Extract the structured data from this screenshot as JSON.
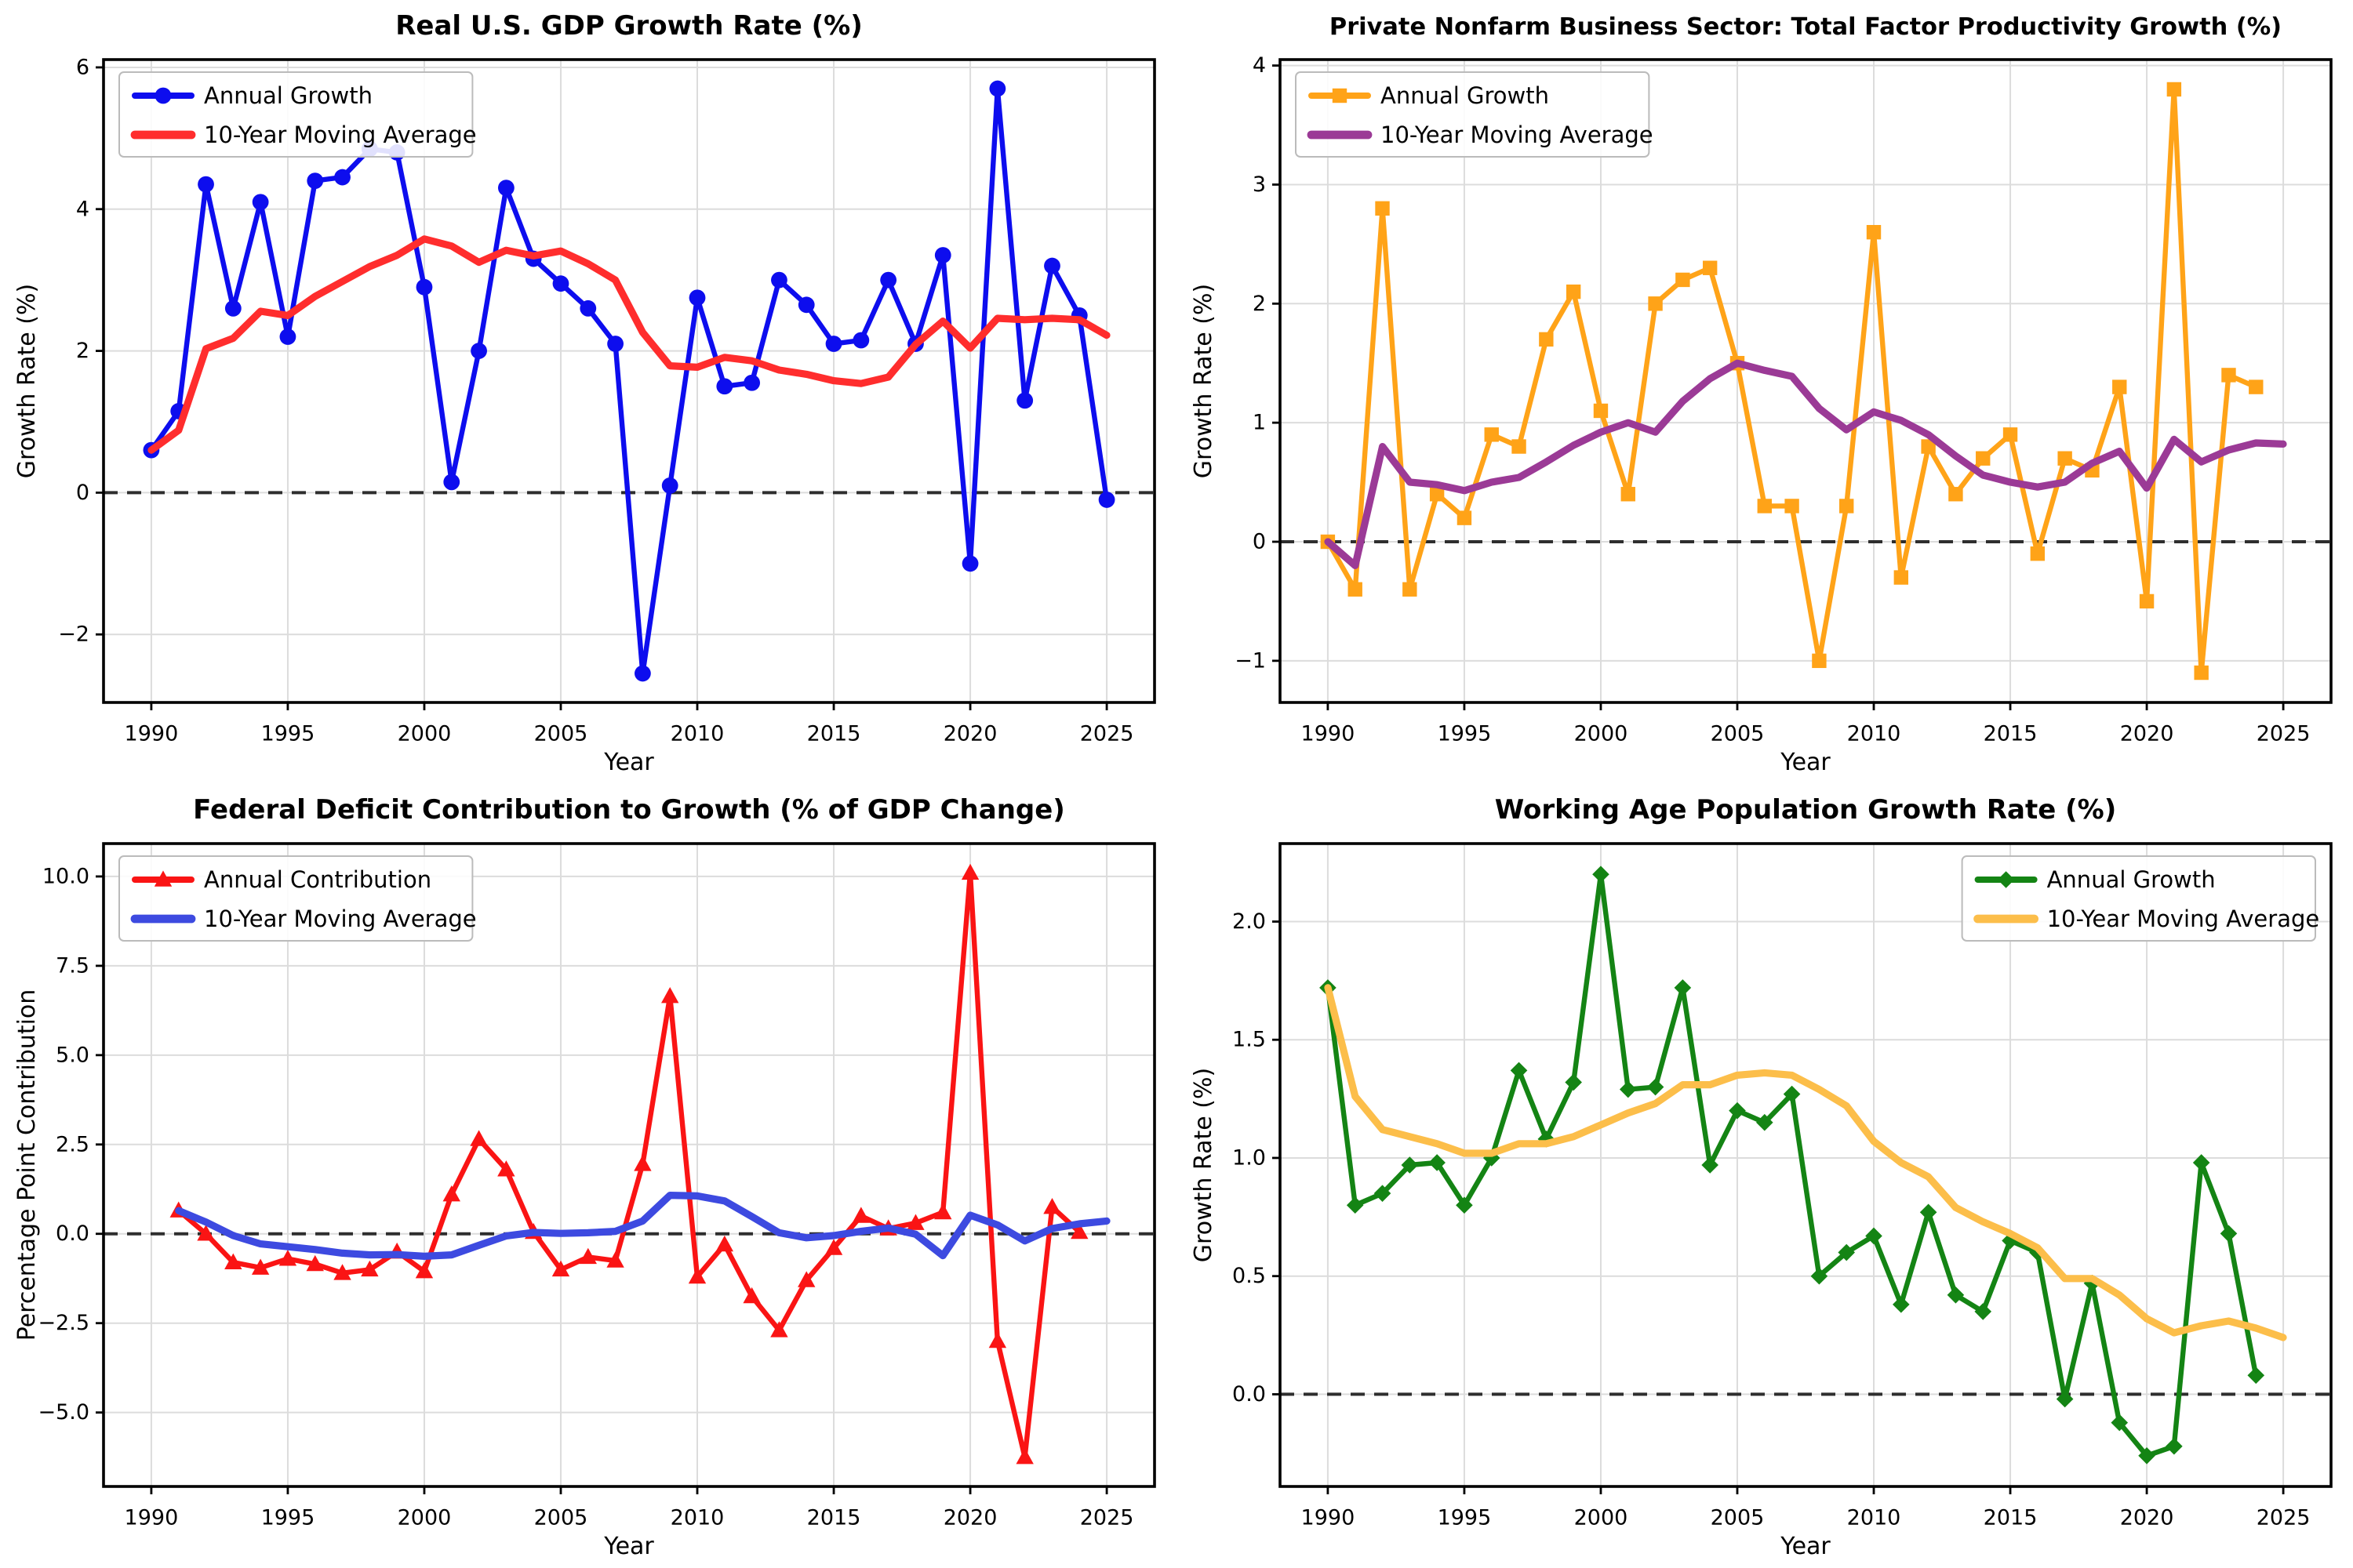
{
  "figure": {
    "background": "#ffffff",
    "grid_color": "#dcdcdc",
    "spine_color": "#000000",
    "zero_line_color": "#2e2e2e"
  },
  "chart_data": [
    {
      "type": "line",
      "title": "Real U.S. GDP Growth Rate (%)",
      "xlabel": "Year",
      "ylabel": "Growth Rate (%)",
      "legend_position": "upper-left",
      "grid": true,
      "zero_line": true,
      "x": [
        1990,
        1991,
        1992,
        1993,
        1994,
        1995,
        1996,
        1997,
        1998,
        1999,
        2000,
        2001,
        2002,
        2003,
        2004,
        2005,
        2006,
        2007,
        2008,
        2009,
        2010,
        2011,
        2012,
        2013,
        2014,
        2015,
        2016,
        2017,
        2018,
        2019,
        2020,
        2021,
        2022,
        2023,
        2024,
        2025
      ],
      "xlim": [
        1988.25,
        2026.75
      ],
      "ylim": [
        -2.96,
        6.11
      ],
      "xticks": [
        1990,
        1995,
        2000,
        2005,
        2010,
        2015,
        2020,
        2025
      ],
      "xtick_labels": [
        "1990",
        "1995",
        "2000",
        "2005",
        "2010",
        "2015",
        "2020",
        "2025"
      ],
      "yticks": [
        -2,
        0,
        2,
        4,
        6
      ],
      "ytick_labels": [
        "−2",
        "0",
        "2",
        "4",
        "6"
      ],
      "series": [
        {
          "name": "Annual Growth",
          "color": "#0d0dee",
          "marker": "circle",
          "width": 3.2,
          "values": [
            0.6,
            1.15,
            4.35,
            2.6,
            4.1,
            2.2,
            4.4,
            4.45,
            4.85,
            4.8,
            2.9,
            0.15,
            2.0,
            4.3,
            3.3,
            2.95,
            2.6,
            2.1,
            -2.55,
            0.1,
            2.75,
            1.5,
            1.55,
            3.0,
            2.65,
            2.1,
            2.15,
            3.0,
            2.1,
            3.35,
            -1.0,
            5.7,
            1.3,
            3.2,
            2.5,
            -0.1
          ]
        },
        {
          "name": "10-Year Moving Average",
          "color": "#ff2d2d",
          "marker": null,
          "width": 4.6,
          "values": [
            0.6,
            0.88,
            2.03,
            2.18,
            2.56,
            2.5,
            2.77,
            2.98,
            3.19,
            3.35,
            3.58,
            3.48,
            3.25,
            3.42,
            3.34,
            3.41,
            3.23,
            3.0,
            2.26,
            1.79,
            1.77,
            1.91,
            1.86,
            1.73,
            1.67,
            1.58,
            1.54,
            1.63,
            2.09,
            2.42,
            2.04,
            2.46,
            2.44,
            2.46,
            2.44,
            2.22
          ]
        }
      ]
    },
    {
      "type": "line",
      "title": "Private Nonfarm Business Sector: Total Factor Productivity Growth (%)",
      "xlabel": "Year",
      "ylabel": "Growth Rate (%)",
      "legend_position": "upper-left",
      "grid": true,
      "zero_line": true,
      "x": [
        1990,
        1991,
        1992,
        1993,
        1994,
        1995,
        1996,
        1997,
        1998,
        1999,
        2000,
        2001,
        2002,
        2003,
        2004,
        2005,
        2006,
        2007,
        2008,
        2009,
        2010,
        2011,
        2012,
        2013,
        2014,
        2015,
        2016,
        2017,
        2018,
        2019,
        2020,
        2021,
        2022,
        2023,
        2024,
        2025
      ],
      "xlim": [
        1988.25,
        2026.75
      ],
      "ylim": [
        -1.35,
        4.05
      ],
      "xticks": [
        1990,
        1995,
        2000,
        2005,
        2010,
        2015,
        2020,
        2025
      ],
      "xtick_labels": [
        "1990",
        "1995",
        "2000",
        "2005",
        "2010",
        "2015",
        "2020",
        "2025"
      ],
      "yticks": [
        -1,
        0,
        1,
        2,
        3,
        4
      ],
      "ytick_labels": [
        "−1",
        "0",
        "1",
        "2",
        "3",
        "4"
      ],
      "series": [
        {
          "name": "Annual Growth",
          "color": "#ffa318",
          "marker": "square",
          "width": 3.2,
          "values": [
            0.0,
            -0.4,
            2.8,
            -0.4,
            0.4,
            0.2,
            0.9,
            0.8,
            1.7,
            2.1,
            1.1,
            0.4,
            2.0,
            2.2,
            2.3,
            1.5,
            0.3,
            0.3,
            -1.0,
            0.3,
            2.6,
            -0.3,
            0.8,
            0.4,
            0.7,
            0.9,
            -0.1,
            0.7,
            0.6,
            1.3,
            -0.5,
            3.8,
            -1.1,
            1.4,
            1.3,
            null
          ]
        },
        {
          "name": "10-Year Moving Average",
          "color": "#9b3a96",
          "marker": null,
          "width": 4.6,
          "values": [
            0.0,
            -0.2,
            0.8,
            0.5,
            0.48,
            0.43,
            0.5,
            0.54,
            0.67,
            0.81,
            0.92,
            1.0,
            0.92,
            1.18,
            1.37,
            1.5,
            1.44,
            1.39,
            1.12,
            0.94,
            1.09,
            1.02,
            0.9,
            0.72,
            0.56,
            0.5,
            0.46,
            0.5,
            0.66,
            0.76,
            0.45,
            0.86,
            0.67,
            0.77,
            0.83,
            0.82
          ]
        }
      ]
    },
    {
      "type": "line",
      "title": "Federal Deficit Contribution to Growth (% of GDP Change)",
      "xlabel": "Year",
      "ylabel": "Percentage Point Contribution",
      "legend_position": "upper-left",
      "grid": true,
      "zero_line": true,
      "x": [
        1990,
        1991,
        1992,
        1993,
        1994,
        1995,
        1996,
        1997,
        1998,
        1999,
        2000,
        2001,
        2002,
        2003,
        2004,
        2005,
        2006,
        2007,
        2008,
        2009,
        2010,
        2011,
        2012,
        2013,
        2014,
        2015,
        2016,
        2017,
        2018,
        2019,
        2020,
        2021,
        2022,
        2023,
        2024,
        2025
      ],
      "xlim": [
        1988.25,
        2026.75
      ],
      "ylim": [
        -7.07,
        10.92
      ],
      "xticks": [
        1990,
        1995,
        2000,
        2005,
        2010,
        2015,
        2020,
        2025
      ],
      "xtick_labels": [
        "1990",
        "1995",
        "2000",
        "2005",
        "2010",
        "2015",
        "2020",
        "2025"
      ],
      "yticks": [
        -5,
        -2.5,
        0,
        2.5,
        5,
        7.5,
        10
      ],
      "ytick_labels": [
        "−5.0",
        "−2.5",
        "0.0",
        "2.5",
        "5.0",
        "7.5",
        "10.0"
      ],
      "series": [
        {
          "name": "Annual Contribution",
          "color": "#fa1414",
          "marker": "triangle",
          "width": 3.2,
          "values": [
            null,
            0.65,
            0.0,
            -0.8,
            -0.95,
            -0.7,
            -0.85,
            -1.1,
            -1.0,
            -0.5,
            -1.05,
            1.1,
            2.65,
            1.8,
            0.05,
            -1.0,
            -0.65,
            -0.75,
            1.95,
            6.65,
            -1.2,
            -0.3,
            -1.75,
            -2.7,
            -1.3,
            -0.4,
            0.5,
            0.15,
            0.3,
            0.6,
            10.1,
            -3.0,
            -6.25,
            0.75,
            0.05,
            null
          ]
        },
        {
          "name": "10-Year Moving Average",
          "color": "#3d4ae0",
          "marker": null,
          "width": 4.6,
          "values": [
            null,
            0.65,
            0.33,
            -0.05,
            -0.28,
            -0.36,
            -0.44,
            -0.54,
            -0.59,
            -0.58,
            -0.63,
            -0.59,
            -0.32,
            -0.06,
            0.04,
            0.01,
            0.03,
            0.07,
            0.36,
            1.08,
            1.06,
            0.92,
            0.48,
            0.03,
            -0.11,
            -0.05,
            0.07,
            0.16,
            -0.01,
            -0.61,
            0.52,
            0.25,
            -0.2,
            0.15,
            0.28,
            0.36
          ]
        }
      ]
    },
    {
      "type": "line",
      "title": "Working Age Population Growth Rate (%)",
      "xlabel": "Year",
      "ylabel": "Growth Rate (%)",
      "legend_position": "upper-right",
      "grid": true,
      "zero_line": true,
      "x": [
        1990,
        1991,
        1992,
        1993,
        1994,
        1995,
        1996,
        1997,
        1998,
        1999,
        2000,
        2001,
        2002,
        2003,
        2004,
        2005,
        2006,
        2007,
        2008,
        2009,
        2010,
        2011,
        2012,
        2013,
        2014,
        2015,
        2016,
        2017,
        2018,
        2019,
        2020,
        2021,
        2022,
        2023,
        2024,
        2025
      ],
      "xlim": [
        1988.25,
        2026.75
      ],
      "ylim": [
        -0.39,
        2.33
      ],
      "xticks": [
        1990,
        1995,
        2000,
        2005,
        2010,
        2015,
        2020,
        2025
      ],
      "xtick_labels": [
        "1990",
        "1995",
        "2000",
        "2005",
        "2010",
        "2015",
        "2020",
        "2025"
      ],
      "yticks": [
        0,
        0.5,
        1,
        1.5,
        2
      ],
      "ytick_labels": [
        "0.0",
        "0.5",
        "1.0",
        "1.5",
        "2.0"
      ],
      "series": [
        {
          "name": "Annual Growth",
          "color": "#148414",
          "marker": "diamond",
          "width": 3.2,
          "values": [
            1.72,
            0.8,
            0.85,
            0.97,
            0.98,
            0.8,
            1.0,
            1.37,
            1.08,
            1.32,
            2.2,
            1.29,
            1.3,
            1.72,
            0.97,
            1.2,
            1.15,
            1.27,
            0.5,
            0.6,
            0.67,
            0.38,
            0.77,
            0.42,
            0.35,
            0.65,
            0.6,
            -0.02,
            0.47,
            -0.12,
            -0.26,
            -0.22,
            0.98,
            0.68,
            0.08,
            null
          ]
        },
        {
          "name": "10-Year Moving Average",
          "color": "#fcbe4a",
          "marker": null,
          "width": 4.6,
          "values": [
            1.72,
            1.26,
            1.12,
            1.09,
            1.06,
            1.02,
            1.02,
            1.06,
            1.06,
            1.09,
            1.14,
            1.19,
            1.23,
            1.31,
            1.31,
            1.35,
            1.36,
            1.35,
            1.29,
            1.22,
            1.07,
            0.98,
            0.92,
            0.79,
            0.73,
            0.68,
            0.62,
            0.49,
            0.49,
            0.42,
            0.32,
            0.26,
            0.29,
            0.31,
            0.28,
            0.24
          ]
        }
      ]
    }
  ]
}
